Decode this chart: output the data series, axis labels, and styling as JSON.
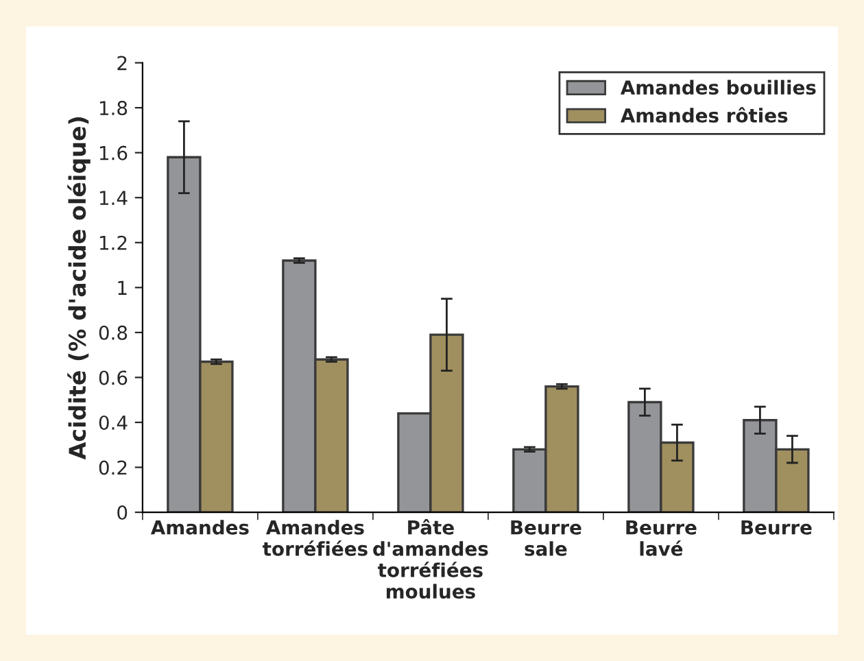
{
  "chart_data": {
    "type": "bar",
    "ylabel": "Acidité (% d'acide oléique)",
    "categories": [
      "Amandes",
      "Amandes\ntorréfiées",
      "Pâte\nd'amandes\ntorréfiées\nmoulues",
      "Beurre\nsale",
      "Beurre\nlavé",
      "Beurre"
    ],
    "series": [
      {
        "name": "Amandes bouillies",
        "color": "#939598",
        "values": [
          1.58,
          1.12,
          0.44,
          0.28,
          0.49,
          0.41
        ],
        "errors": [
          0.16,
          0.01,
          null,
          0.01,
          0.06,
          0.06
        ]
      },
      {
        "name": "Amandes rôties",
        "color": "#a08f5f",
        "values": [
          0.67,
          0.68,
          0.79,
          0.56,
          0.31,
          0.28
        ],
        "errors": [
          0.01,
          0.01,
          0.16,
          0.01,
          0.08,
          0.06
        ]
      }
    ],
    "ylim": [
      0,
      2
    ],
    "yticks": [
      0,
      {
        "value": 0.2,
        "label": "0.2"
      },
      {
        "value": 0.4,
        "label": "0.4"
      },
      {
        "value": 0.6,
        "label": "0.6"
      },
      {
        "value": 0.8,
        "label": "0.8"
      },
      1,
      {
        "value": 1.2,
        "label": "1.2"
      },
      {
        "value": 1.4,
        "label": "1.4"
      },
      {
        "value": 1.6,
        "label": "1.6"
      },
      {
        "value": 1.8,
        "label": "1.8"
      },
      2
    ],
    "grid": false,
    "legend": "top right"
  }
}
